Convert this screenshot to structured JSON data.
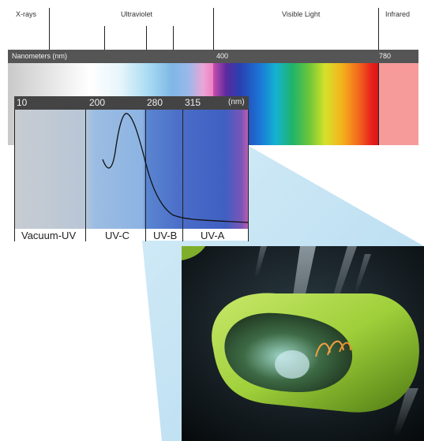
{
  "regions": {
    "xrays": "X-rays",
    "ultraviolet": "Ultraviolet",
    "visible": "Visible Light",
    "infrared": "Infrared"
  },
  "main_scale": {
    "unit_label": "Nanometers (nm)",
    "tick_400": "400",
    "tick_780": "780"
  },
  "inset_scale": {
    "tick_10": "10",
    "tick_200": "200",
    "tick_280": "280",
    "tick_315": "315",
    "unit": "(nm)"
  },
  "bands": {
    "vacuum_uv": "Vacuum-UV",
    "uv_c": "UV-C",
    "uv_b": "UV-B",
    "uv_a": "UV-A"
  },
  "colors": {
    "scale_bar": "#555555",
    "inset_bar": "#444444",
    "infrared": "#f79a9a",
    "bacterium": "#9fcf3a",
    "beam": "#a8d8f0"
  }
}
